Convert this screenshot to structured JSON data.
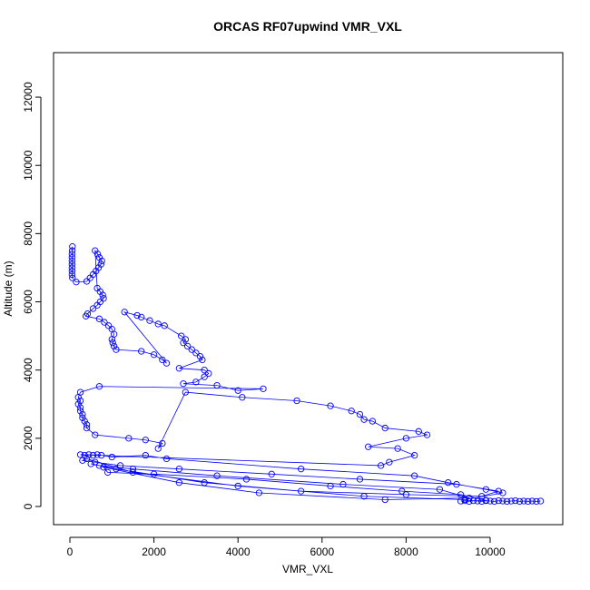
{
  "chart_data": {
    "type": "line",
    "markers": true,
    "title": "ORCAS RF07upwind VMR_VXL",
    "x_label": "VMR_VXL",
    "y_label": "Altitude (m)",
    "color": "#0000ff",
    "xlim": [
      -389,
      11728
    ],
    "ylim": [
      -532,
      13305
    ],
    "xticks": [
      0,
      2000,
      4000,
      6000,
      8000,
      10000
    ],
    "yticks": [
      0,
      2000,
      4000,
      6000,
      8000,
      10000,
      12000
    ],
    "x": [
      60,
      55,
      50,
      50,
      50,
      50,
      50,
      50,
      50,
      60,
      150,
      400,
      480,
      550,
      620,
      680,
      740,
      760,
      700,
      660,
      600,
      650,
      720,
      780,
      800,
      720,
      650,
      550,
      420,
      380,
      700,
      820,
      920,
      1000,
      1050,
      1000,
      1020,
      1050,
      1100,
      1700,
      2000,
      2200,
      2300,
      1300,
      1600,
      1700,
      1900,
      2100,
      2250,
      2650,
      2750,
      2700,
      2800,
      2900,
      3000,
      3100,
      3150,
      2600,
      3200,
      3300,
      3200,
      3000,
      2700,
      3500,
      4000,
      4600,
      700,
      250,
      200,
      250,
      200,
      250,
      250,
      300,
      300,
      350,
      400,
      400,
      600,
      1400,
      1800,
      2200,
      2100,
      2750,
      4100,
      5400,
      6200,
      6700,
      6900,
      7000,
      7200,
      7500,
      8300,
      8500,
      8000,
      7100,
      7800,
      8200,
      7600,
      7400,
      250,
      350,
      450,
      550,
      650,
      750,
      1000,
      1800,
      2300,
      5500,
      8200,
      9000,
      9900,
      10300,
      9400,
      7000,
      4000,
      1500,
      400,
      300,
      600,
      1200,
      2600,
      4800,
      6900,
      9200,
      10200,
      9800,
      8000,
      5500,
      3200,
      1100,
      500,
      700,
      1500,
      3500,
      6500,
      8800,
      9500,
      7500,
      4500,
      2600,
      800,
      900,
      2000,
      4200,
      6200,
      7900,
      9300,
      9900,
      9300,
      9400,
      9500,
      9600,
      9700,
      9800,
      9900,
      10000,
      10100,
      10200,
      10300,
      10400,
      10500,
      10600,
      10700,
      10800,
      10900,
      11000,
      11100,
      11200
    ],
    "values": [
      7620,
      7500,
      7400,
      7300,
      7200,
      7100,
      7000,
      6900,
      6800,
      6700,
      6580,
      6600,
      6700,
      6800,
      6900,
      7000,
      7100,
      7200,
      7300,
      7400,
      7500,
      6400,
      6300,
      6200,
      6100,
      6000,
      5900,
      5800,
      5650,
      5580,
      5500,
      5400,
      5300,
      5200,
      5050,
      4900,
      4800,
      4700,
      4600,
      4550,
      4450,
      4300,
      4200,
      5700,
      5600,
      5550,
      5450,
      5350,
      5300,
      5000,
      4900,
      4800,
      4700,
      4600,
      4500,
      4400,
      4300,
      4050,
      4000,
      3900,
      3800,
      3650,
      3600,
      3550,
      3400,
      3450,
      3520,
      3350,
      3200,
      3100,
      3000,
      2900,
      2800,
      2700,
      2600,
      2500,
      2400,
      2300,
      2100,
      2000,
      1950,
      1850,
      1700,
      3350,
      3200,
      3100,
      2950,
      2800,
      2700,
      2550,
      2500,
      2300,
      2200,
      2100,
      2000,
      1750,
      1700,
      1500,
      1300,
      1200,
      1520,
      1500,
      1520,
      1500,
      1520,
      1500,
      1450,
      1500,
      1400,
      1100,
      900,
      700,
      500,
      400,
      200,
      300,
      600,
      1000,
      1400,
      1350,
      1300,
      1200,
      1100,
      950,
      800,
      650,
      450,
      300,
      350,
      450,
      700,
      1100,
      1250,
      1200,
      1100,
      900,
      650,
      500,
      250,
      200,
      400,
      700,
      1150,
      1000,
      950,
      800,
      600,
      450,
      350,
      180,
      160,
      170,
      150,
      170,
      160,
      150,
      170,
      160,
      150,
      170,
      160,
      150,
      160,
      170,
      150,
      160,
      150,
      160,
      150,
      160
    ]
  }
}
